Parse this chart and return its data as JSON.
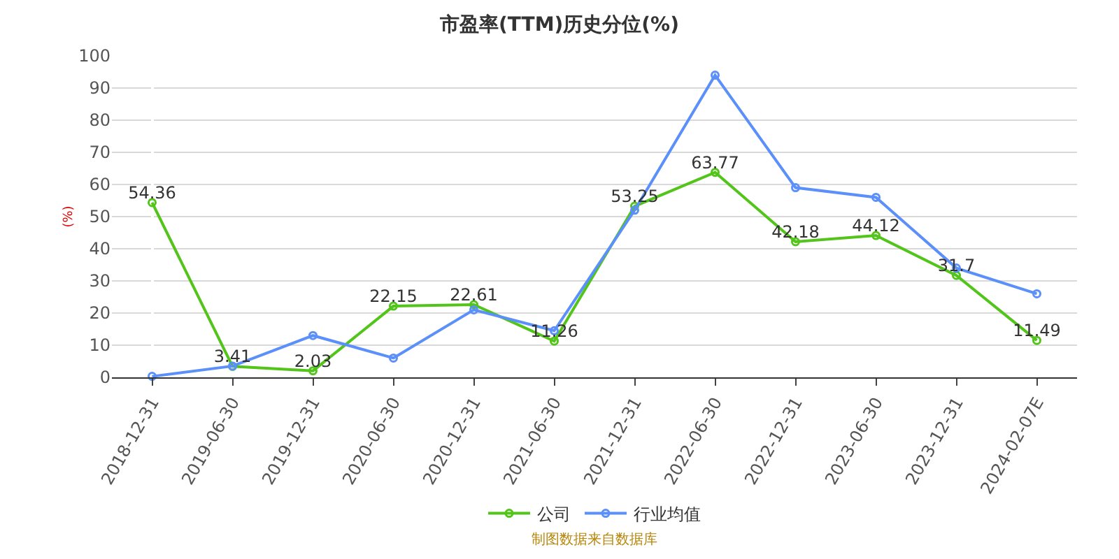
{
  "chart_data": {
    "type": "line",
    "title": "市盈率(TTM)历史分位(%)",
    "ylabel": "(%)",
    "categories": [
      "2018-12-31",
      "2019-06-30",
      "2019-12-31",
      "2020-06-30",
      "2020-12-31",
      "2021-06-30",
      "2021-12-31",
      "2022-06-30",
      "2022-12-31",
      "2023-06-30",
      "2023-12-31",
      "2024-02-07E"
    ],
    "series": [
      {
        "name": "公司",
        "color": "#52c41a",
        "values": [
          54.36,
          3.41,
          2.03,
          22.15,
          22.61,
          11.26,
          53.25,
          63.77,
          42.18,
          44.12,
          31.7,
          11.49
        ],
        "value_labels": [
          "54.36",
          "3.41",
          "2.03",
          "22.15",
          "22.61",
          "11.26",
          "53.25",
          "63.77",
          "42.18",
          "44.12",
          "31.7",
          "11.49"
        ]
      },
      {
        "name": "行业均值",
        "color": "#5b8ff9",
        "values": [
          0.3,
          3.5,
          13,
          6,
          21,
          14.5,
          52,
          94,
          59,
          56,
          34,
          26
        ]
      }
    ],
    "ylim": [
      0,
      100
    ],
    "yticks": [
      0,
      10,
      20,
      30,
      40,
      50,
      60,
      70,
      80,
      90,
      100
    ],
    "grid": "y",
    "legend": "bottom",
    "marker": "circle",
    "line_style": "solid",
    "annotations": [
      "制图数据来自数据库"
    ]
  }
}
